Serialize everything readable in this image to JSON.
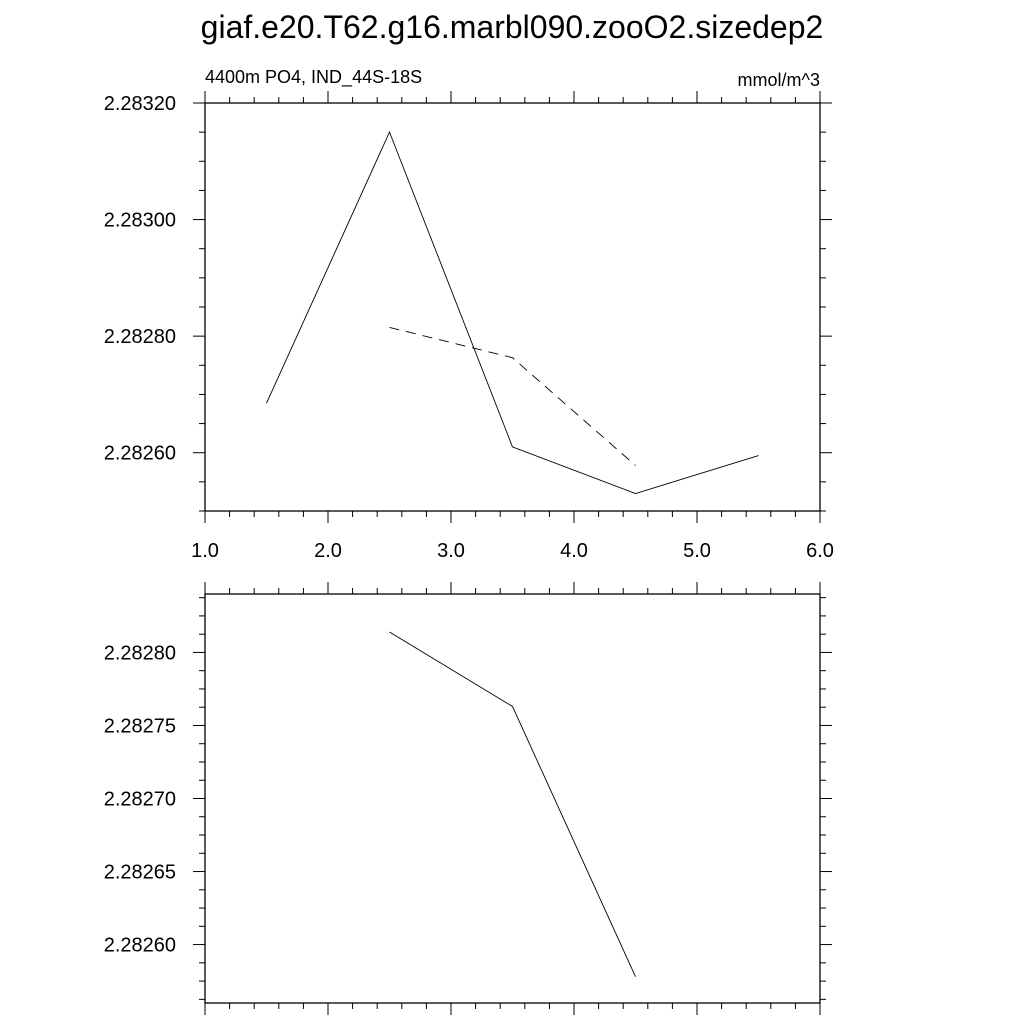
{
  "figure": {
    "title": "giaf.e20.T62.g16.marbl090.zooO2.sizedep2"
  },
  "chart_data": [
    {
      "type": "line",
      "left_label": "4400m PO4, IND_44S-18S",
      "right_label": "mmol/m^3",
      "xlim": [
        1.0,
        6.0
      ],
      "ylim": [
        2.2825,
        2.2832
      ],
      "x_ticks": [
        1.0,
        2.0,
        3.0,
        4.0,
        5.0,
        6.0
      ],
      "x_tick_labels": [
        "1.0",
        "2.0",
        "3.0",
        "4.0",
        "5.0",
        "6.0"
      ],
      "y_ticks": [
        2.2826,
        2.2828,
        2.283,
        2.2832
      ],
      "y_tick_labels": [
        "2.28260",
        "2.28280",
        "2.28300",
        "2.28320"
      ],
      "grid": false,
      "series": [
        {
          "style": "solid",
          "x": [
            1.5,
            2.5,
            3.5,
            4.5,
            5.5
          ],
          "y": [
            2.282685,
            2.28315,
            2.28261,
            2.28253,
            2.282595
          ]
        },
        {
          "style": "dashed",
          "x": [
            2.5,
            3.5,
            4.5
          ],
          "y": [
            2.282815,
            2.282763,
            2.282578
          ]
        }
      ]
    },
    {
      "type": "line",
      "xlim": [
        1.0,
        6.0
      ],
      "ylim": [
        2.28256,
        2.28284
      ],
      "x_ticks": [
        1.0,
        2.0,
        3.0,
        4.0,
        5.0,
        6.0
      ],
      "y_ticks": [
        2.2826,
        2.28265,
        2.2827,
        2.28275,
        2.2828
      ],
      "y_tick_labels": [
        "2.28260",
        "2.28265",
        "2.28270",
        "2.28275",
        "2.28280"
      ],
      "grid": false,
      "series": [
        {
          "style": "solid",
          "x": [
            2.5,
            3.5,
            4.5
          ],
          "y": [
            2.282814,
            2.282763,
            2.282578
          ]
        }
      ]
    }
  ]
}
